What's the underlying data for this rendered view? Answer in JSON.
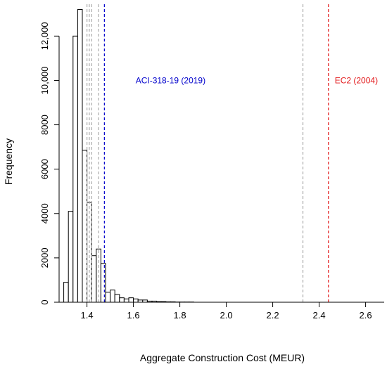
{
  "chart_data": {
    "type": "bar",
    "xlabel": "Aggregate Construction Cost (MEUR)",
    "ylabel": "Frequency",
    "xlim": [
      1.28,
      2.68
    ],
    "ylim": [
      0,
      13500
    ],
    "x_ticks": [
      1.4,
      1.6,
      1.8,
      2.0,
      2.2,
      2.4,
      2.6
    ],
    "x_tick_labels": [
      "1.4",
      "1.6",
      "1.8",
      "2.0",
      "2.2",
      "2.4",
      "2.6"
    ],
    "y_ticks": [
      0,
      2000,
      4000,
      6000,
      8000,
      10000,
      12000
    ],
    "y_tick_labels": [
      "0",
      "2000",
      "4000",
      "6000",
      "8000",
      "10,000",
      "12,000"
    ],
    "bin_width": 0.02,
    "bins_start": [
      1.3,
      1.32,
      1.34,
      1.36,
      1.38,
      1.4,
      1.42,
      1.44,
      1.46,
      1.48,
      1.5,
      1.52,
      1.54,
      1.56,
      1.58,
      1.6,
      1.62,
      1.64,
      1.66,
      1.68,
      1.7,
      1.72,
      1.74,
      1.76,
      1.78,
      1.8,
      1.82,
      1.84
    ],
    "counts": [
      900,
      4100,
      12000,
      13200,
      6850,
      4500,
      2100,
      2400,
      1750,
      450,
      550,
      350,
      200,
      150,
      200,
      150,
      100,
      100,
      50,
      50,
      30,
      30,
      20,
      20,
      10,
      10,
      10,
      10
    ],
    "grid": false,
    "reference_lines": [
      {
        "x": 1.4,
        "color": "#aaaaaa",
        "label": ""
      },
      {
        "x": 1.41,
        "color": "#aaaaaa",
        "label": ""
      },
      {
        "x": 1.42,
        "color": "#aaaaaa",
        "label": ""
      },
      {
        "x": 1.45,
        "color": "#aaaaaa",
        "label": ""
      },
      {
        "x": 1.475,
        "color": "#0000cc",
        "label": "ACI-318-19 (2019)"
      },
      {
        "x": 2.33,
        "color": "#aaaaaa",
        "label": ""
      },
      {
        "x": 2.44,
        "color": "#e31a1c",
        "label": "EC2 (2004)"
      }
    ],
    "annotations": [
      {
        "text": "ACI-318-19 (2019)",
        "x": 1.76,
        "y": 10000,
        "color": "#0000cc"
      },
      {
        "text": "EC2 (2004)",
        "x": 2.56,
        "y": 10000,
        "color": "#e31a1c"
      }
    ]
  }
}
